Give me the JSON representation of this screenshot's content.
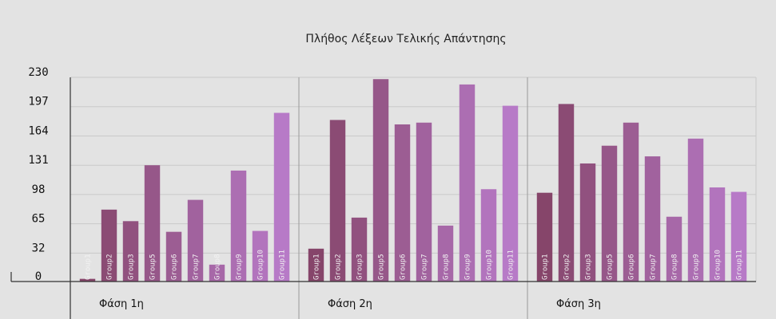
{
  "chart_data": {
    "type": "bar",
    "title": "Πλήθος Λέξεων Τελικής Απάντησης",
    "xlabel": "",
    "ylabel": "",
    "ylim": [
      0,
      230
    ],
    "yticks": [
      0,
      32,
      65,
      98,
      131,
      164,
      197,
      230
    ],
    "grid": true,
    "legend": "none",
    "colors": {
      "background": "#e3e3e3",
      "grid": "#c9c9c9",
      "axis": "#333333",
      "bar_dark": "#86456a",
      "bar_light": "#b77ac7"
    },
    "groups": [
      {
        "label": "Φάση 1η",
        "bars": [
          {
            "label": "Group1",
            "value": 3
          },
          {
            "label": "Group2",
            "value": 81
          },
          {
            "label": "Group3",
            "value": 68
          },
          {
            "label": "Group5",
            "value": 131
          },
          {
            "label": "Group6",
            "value": 56
          },
          {
            "label": "Group7",
            "value": 92
          },
          {
            "label": "Group8",
            "value": 19
          },
          {
            "label": "Group9",
            "value": 125
          },
          {
            "label": "Group10",
            "value": 57
          },
          {
            "label": "Group11",
            "value": 190
          }
        ]
      },
      {
        "label": "Φάση 2η",
        "bars": [
          {
            "label": "Group1",
            "value": 37
          },
          {
            "label": "Group2",
            "value": 182
          },
          {
            "label": "Group3",
            "value": 72
          },
          {
            "label": "Group5",
            "value": 228
          },
          {
            "label": "Group6",
            "value": 177
          },
          {
            "label": "Group7",
            "value": 179
          },
          {
            "label": "Group8",
            "value": 63
          },
          {
            "label": "Group9",
            "value": 222
          },
          {
            "label": "Group10",
            "value": 104
          },
          {
            "label": "Group11",
            "value": 198
          }
        ]
      },
      {
        "label": "Φάση 3η",
        "bars": [
          {
            "label": "Group1",
            "value": 100
          },
          {
            "label": "Group2",
            "value": 200
          },
          {
            "label": "Group3",
            "value": 133
          },
          {
            "label": "Group5",
            "value": 153
          },
          {
            "label": "Group6",
            "value": 179
          },
          {
            "label": "Group7",
            "value": 141
          },
          {
            "label": "Group8",
            "value": 73
          },
          {
            "label": "Group9",
            "value": 161
          },
          {
            "label": "Group10",
            "value": 106
          },
          {
            "label": "Group11",
            "value": 101
          }
        ]
      }
    ]
  }
}
